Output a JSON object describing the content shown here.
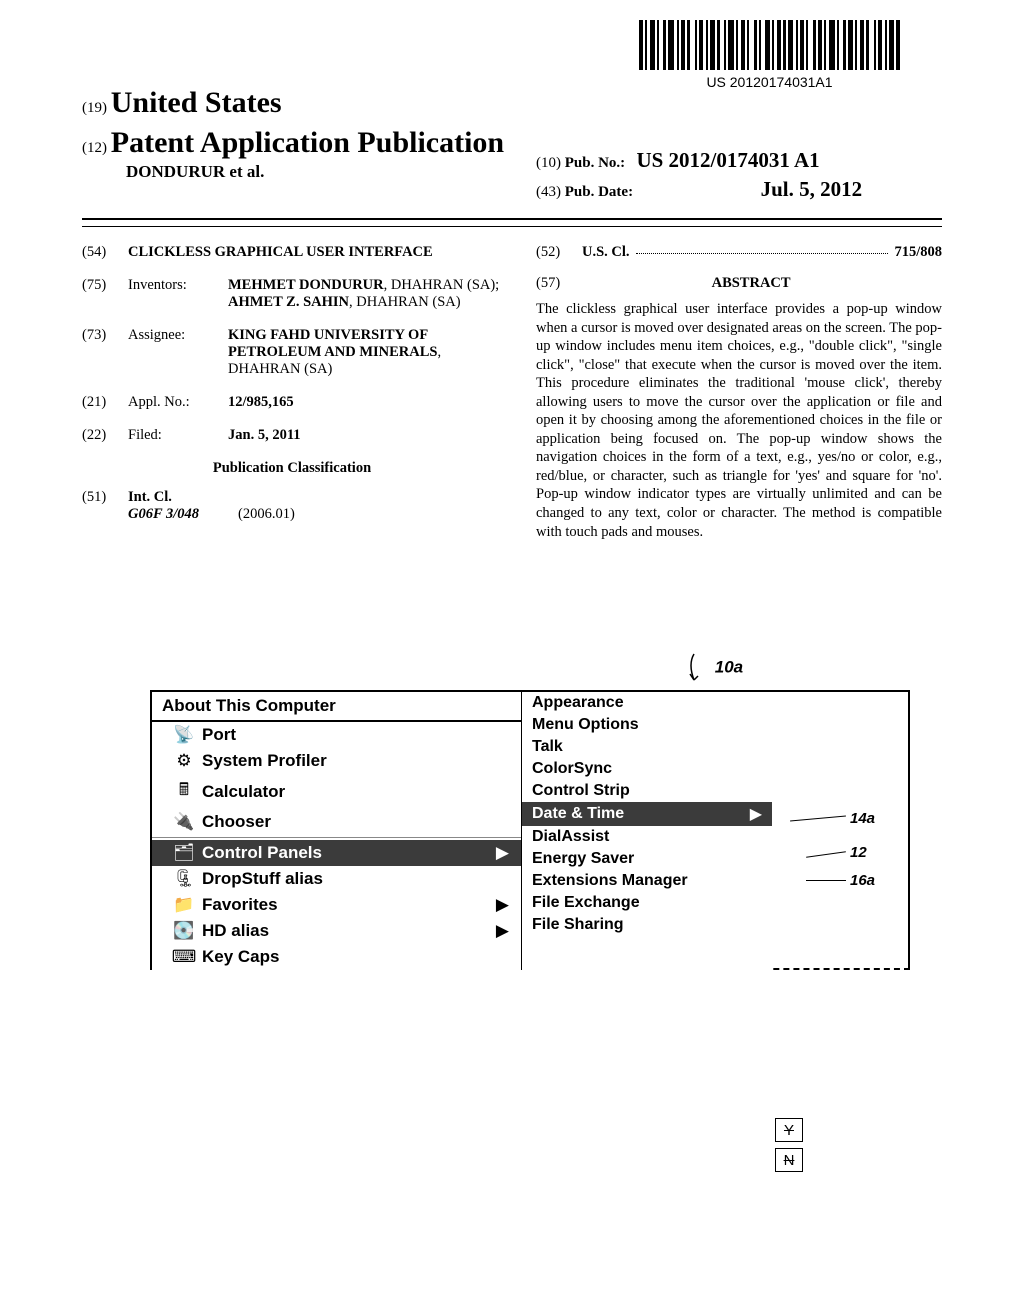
{
  "barcode_text": "US 20120174031A1",
  "country_prefix": "(19)",
  "country": "United States",
  "pub_prefix": "(12)",
  "pub_title": "Patent Application Publication",
  "author_line": "DONDURUR et al.",
  "pubno_prefix": "(10)",
  "pubno_label": "Pub. No.:",
  "pubno_value": "US 2012/0174031 A1",
  "pubdate_prefix": "(43)",
  "pubdate_label": "Pub. Date:",
  "pubdate_value": "Jul. 5, 2012",
  "meta": {
    "title_code": "(54)",
    "title_value": "CLICKLESS GRAPHICAL USER INTERFACE",
    "inventors_code": "(75)",
    "inventors_label": "Inventors:",
    "inventors_value": "MEHMET DONDURUR, DHAHRAN (SA); AHMET Z. SAHIN, DHAHRAN (SA)",
    "assignee_code": "(73)",
    "assignee_label": "Assignee:",
    "assignee_value": "KING FAHD UNIVERSITY OF PETROLEUM AND MINERALS, DHAHRAN (SA)",
    "applno_code": "(21)",
    "applno_label": "Appl. No.:",
    "applno_value": "12/985,165",
    "filed_code": "(22)",
    "filed_label": "Filed:",
    "filed_value": "Jan. 5, 2011",
    "pubclass": "Publication Classification",
    "intcl_code": "(51)",
    "intcl_label": "Int. Cl.",
    "intcl_class": "G06F 3/048",
    "intcl_date": "(2006.01)",
    "uscl_code": "(52)",
    "uscl_label": "U.S. Cl.",
    "uscl_value": "715/808"
  },
  "abstract_code": "(57)",
  "abstract_label": "ABSTRACT",
  "abstract_text": "The clickless graphical user interface provides a pop-up window when a cursor is moved over designated areas on the screen. The pop-up window includes menu item choices, e.g., \"double click\", \"single click\", \"close\" that execute when the cursor is moved over the item. This procedure eliminates the traditional 'mouse click', thereby allowing users to move the cursor over the application or file and open it by choosing among the aforementioned choices in the file or application being focused on. The pop-up window shows the navigation choices in the form of a text, e.g., yes/no or color, e.g., red/blue, or character, such as triangle for 'yes' and square for 'no'. Pop-up window indicator types are virtually unlimited and can be changed to any text, color or character. The method is compatible with touch pads and mouses.",
  "figure": {
    "callout": "10a",
    "menu1_title": "About This Computer",
    "menu1_items": [
      {
        "icon": "📡",
        "label": "Port"
      },
      {
        "icon": "⚙",
        "label": "System Profiler"
      },
      {
        "icon": "🖩",
        "label": "Calculator"
      },
      {
        "icon": "🔌",
        "label": "Chooser"
      }
    ],
    "menu1_hl": {
      "icon": "🗂",
      "label": "Control Panels",
      "arrow": "▶"
    },
    "menu1_items2": [
      {
        "icon": "🗜",
        "label": "DropStuff alias"
      },
      {
        "icon": "📁",
        "label": "Favorites",
        "arrow": "▶"
      },
      {
        "icon": "💽",
        "label": "HD alias",
        "arrow": "▶"
      },
      {
        "icon": "⌨",
        "label": "Key Caps"
      }
    ],
    "menu2_items_top": [
      "Appearance",
      "Menu Options",
      "Talk",
      "ColorSync",
      "Control Strip"
    ],
    "menu2_hl": {
      "label": "Date & Time",
      "arrow": "▶"
    },
    "menu2_items_bottom": [
      "DialAssist",
      "Energy Saver",
      "Extensions Manager",
      "File Exchange",
      "File Sharing"
    ],
    "badge_y": "Y",
    "badge_n": "N",
    "label_14a": "14a",
    "label_12": "12",
    "label_16a": "16a"
  },
  "colors": {
    "highlight_bg": "#3b3b3b",
    "highlight_fg": "#ffffff",
    "page_bg": "#ffffff",
    "text": "#000000"
  }
}
